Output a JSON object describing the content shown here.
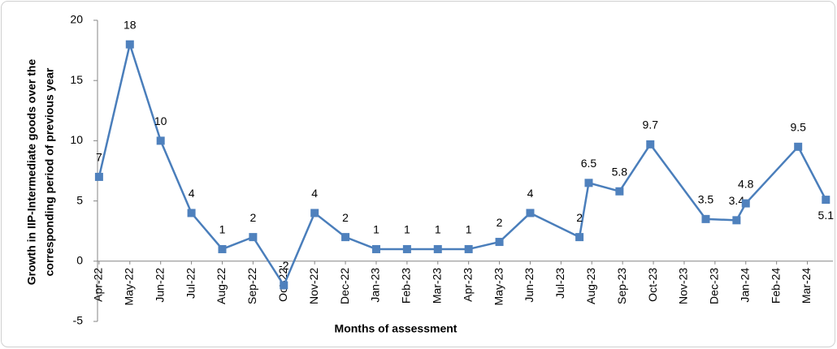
{
  "chart_data": {
    "type": "line",
    "y_label": [
      "Growth in IIP-Intermediate goods over the",
      "corresponding period of previous year"
    ],
    "x_label": "Months of assessment",
    "x": [
      0,
      1,
      2,
      3,
      4,
      5,
      6,
      7,
      8,
      9,
      10,
      11,
      12,
      13,
      14,
      15.6,
      15.9,
      16.9,
      17.9,
      19.7,
      20.7,
      21.0,
      22.7,
      23.6
    ],
    "series": [
      {
        "color": "#4a7ebb",
        "values": [
          7,
          18,
          10,
          4,
          1,
          2,
          -2,
          4,
          2,
          1,
          1,
          1,
          1,
          1.6,
          4,
          2,
          6.5,
          5.8,
          9.7,
          3.5,
          3.4,
          4.8,
          9.5,
          5.1
        ],
        "value_labels": [
          "7",
          "18",
          "10",
          "4",
          "1",
          "2",
          "-2",
          "4",
          "2",
          "1",
          "1",
          "1",
          "1",
          "2",
          "4",
          "2",
          "6.5",
          "5.8",
          "9.7",
          "3.5",
          "3.4",
          "4.8",
          "9.5",
          "5.1"
        ]
      }
    ],
    "xlim": [
      -0.05,
      23.83
    ],
    "xticks": [
      {
        "value": 0,
        "label": "Apr-22"
      },
      {
        "value": 1,
        "label": "May-22"
      },
      {
        "value": 2,
        "label": "Jun-22"
      },
      {
        "value": 3,
        "label": "Jul-22"
      },
      {
        "value": 4,
        "label": "Aug-22"
      },
      {
        "value": 5,
        "label": "Sep-22"
      },
      {
        "value": 6,
        "label": "Oct-22"
      },
      {
        "value": 7,
        "label": "Nov-22"
      },
      {
        "value": 8,
        "label": "Dec-22"
      },
      {
        "value": 9,
        "label": "Jan-23"
      },
      {
        "value": 10,
        "label": "Feb-23"
      },
      {
        "value": 11,
        "label": "Mar-23"
      },
      {
        "value": 12,
        "label": "Apr-23"
      },
      {
        "value": 13,
        "label": "May-23"
      },
      {
        "value": 14,
        "label": "Jun-23"
      },
      {
        "value": 15,
        "label": "Jul-23"
      },
      {
        "value": 16,
        "label": "Aug-23"
      },
      {
        "value": 17,
        "label": "Sep-23"
      },
      {
        "value": 18,
        "label": "Oct-23"
      },
      {
        "value": 19,
        "label": "Nov-23"
      },
      {
        "value": 20,
        "label": "Dec-23"
      },
      {
        "value": 21,
        "label": "Jan-24"
      },
      {
        "value": 22,
        "label": "Feb-24"
      },
      {
        "value": 23,
        "label": "Mar-24"
      }
    ],
    "ylim": [
      -5,
      20
    ],
    "yticks": [
      -5,
      0,
      5,
      10,
      15,
      20
    ],
    "marker": "square",
    "marker_color": "#4f81bd"
  }
}
